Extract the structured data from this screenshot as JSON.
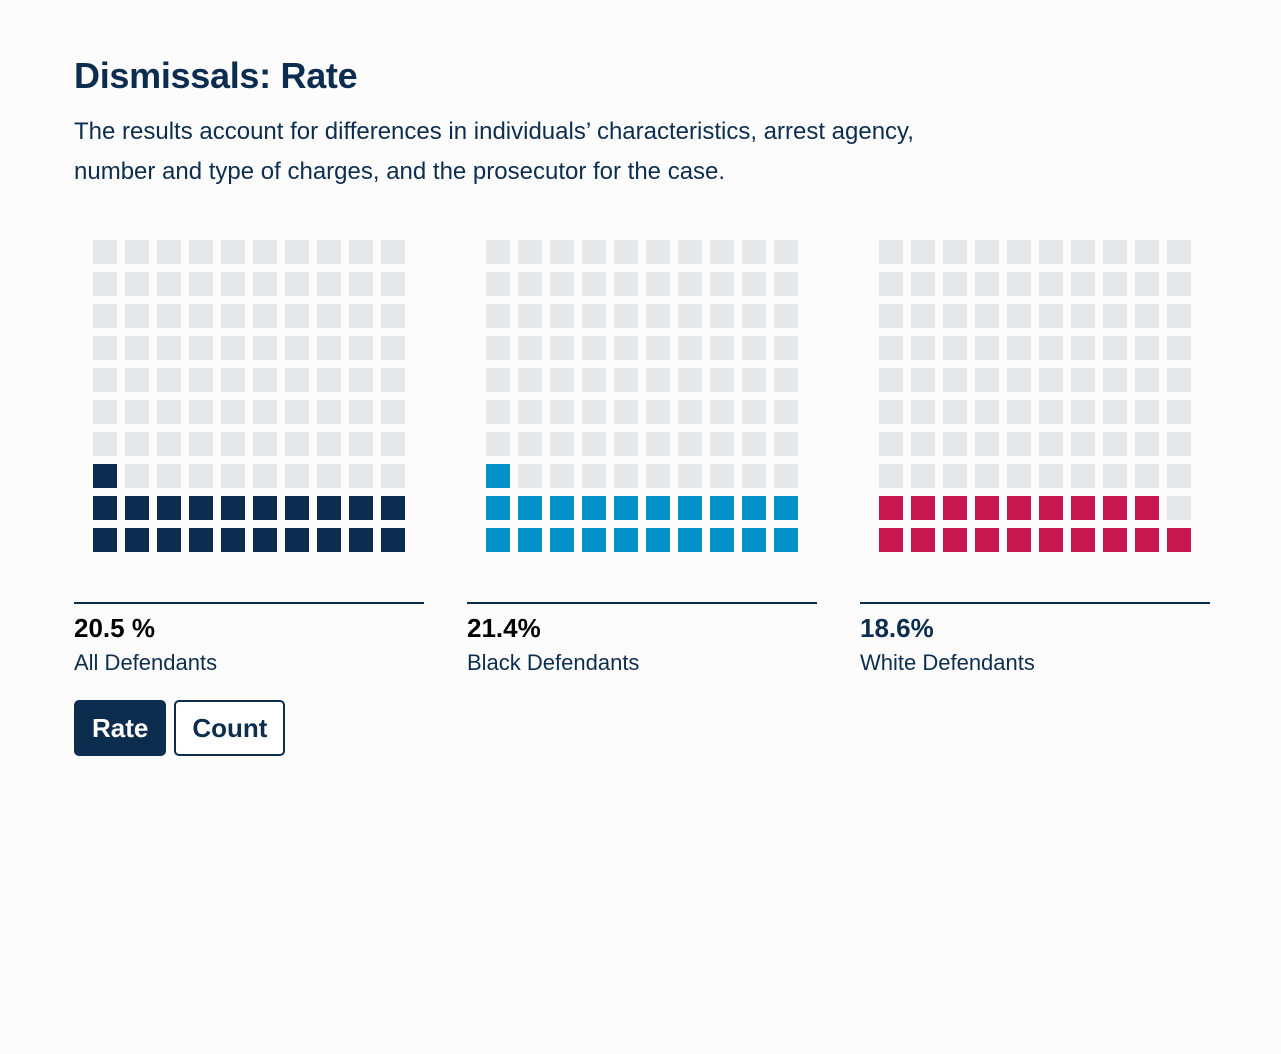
{
  "header": {
    "title": "Dismissals: Rate",
    "subtitle": "The results account for differences in individuals’ characteristics, arrest agency, number and type of charges, and the prosecutor for the case."
  },
  "chart_data": {
    "type": "waffle",
    "grid": {
      "rows": 10,
      "cols": 10
    },
    "empty_color": "#e6e7e9",
    "panels": [
      {
        "name": "All Defendants",
        "value_label": "20.5 %",
        "filled_squares": 21,
        "color": "#0d2d4f"
      },
      {
        "name": "Black Defendants",
        "value_label": "21.4%",
        "filled_squares": 21,
        "color": "#0391c9"
      },
      {
        "name": "White Defendants",
        "value_label": "18.6%",
        "filled_squares": 19,
        "color": "#c8174e"
      }
    ]
  },
  "controls": {
    "rate_label": "Rate",
    "count_label": "Count",
    "active": "rate"
  }
}
